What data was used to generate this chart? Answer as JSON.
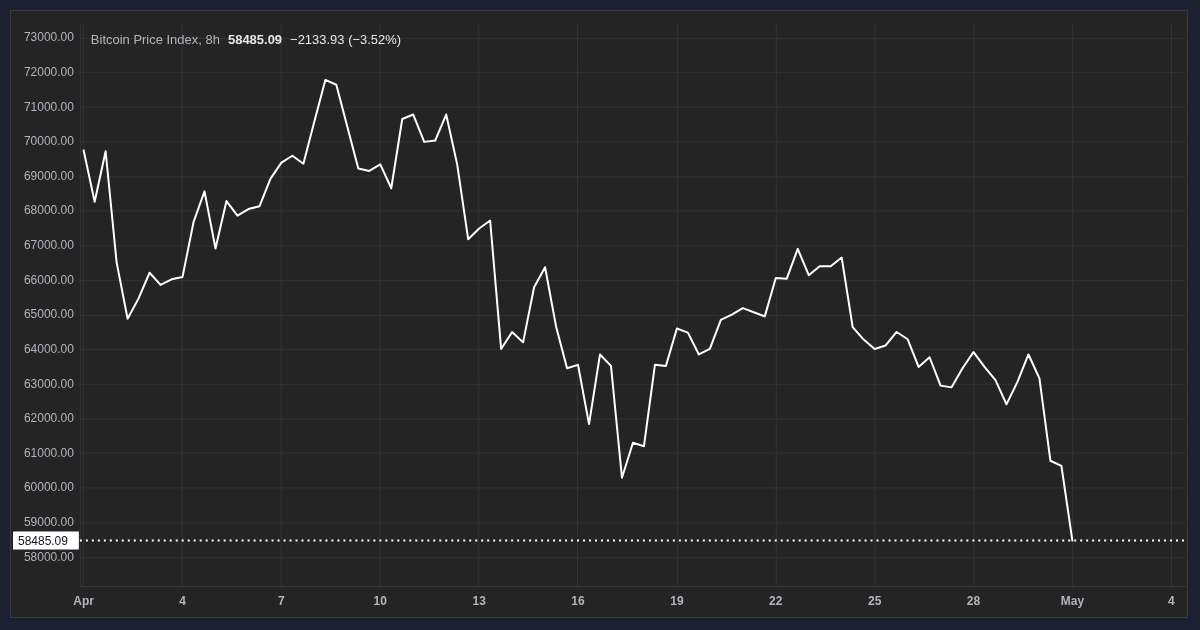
{
  "chart_data": {
    "type": "line",
    "title": "Bitcoin Price Index, 8h",
    "annotations": [
      "58485.09",
      "−2133.93 (−3.52%)"
    ],
    "x": [
      "--04-01T00:00",
      "--04-01T08:00",
      "--04-01T16:00",
      "--04-02T00:00",
      "--04-02T08:00",
      "--04-02T16:00",
      "--04-03T00:00",
      "--04-03T08:00",
      "--04-03T16:00",
      "--04-04T00:00",
      "--04-04T08:00",
      "--04-04T16:00",
      "--04-05T00:00",
      "--04-05T08:00",
      "--04-05T16:00",
      "--04-06T00:00",
      "--04-06T08:00",
      "--04-06T16:00",
      "--04-07T00:00",
      "--04-07T08:00",
      "--04-07T16:00",
      "--04-08T00:00",
      "--04-08T08:00",
      "--04-08T16:00",
      "--04-09T00:00",
      "--04-09T08:00",
      "--04-09T16:00",
      "--04-10T00:00",
      "--04-10T08:00",
      "--04-10T16:00",
      "--04-11T00:00",
      "--04-11T08:00",
      "--04-11T16:00",
      "--04-12T00:00",
      "--04-12T08:00",
      "--04-12T16:00",
      "--04-13T00:00",
      "--04-13T08:00",
      "--04-13T16:00",
      "--04-14T00:00",
      "--04-14T08:00",
      "--04-14T16:00",
      "--04-15T00:00",
      "--04-15T08:00",
      "--04-15T16:00",
      "--04-16T00:00",
      "--04-16T08:00",
      "--04-16T16:00",
      "--04-17T00:00",
      "--04-17T08:00",
      "--04-17T16:00",
      "--04-18T00:00",
      "--04-18T08:00",
      "--04-18T16:00",
      "--04-19T00:00",
      "--04-19T08:00",
      "--04-19T16:00",
      "--04-20T00:00",
      "--04-20T08:00",
      "--04-20T16:00",
      "--04-21T00:00",
      "--04-21T08:00",
      "--04-21T16:00",
      "--04-22T00:00",
      "--04-22T08:00",
      "--04-22T16:00",
      "--04-23T00:00",
      "--04-23T08:00",
      "--04-23T16:00",
      "--04-24T00:00",
      "--04-24T08:00",
      "--04-24T16:00",
      "--04-25T00:00",
      "--04-25T08:00",
      "--04-25T16:00",
      "--04-26T00:00",
      "--04-26T08:00",
      "--04-26T16:00",
      "--04-27T00:00",
      "--04-27T08:00",
      "--04-27T16:00",
      "--04-28T00:00",
      "--04-28T08:00",
      "--04-28T16:00",
      "--04-29T00:00",
      "--04-29T08:00",
      "--04-29T16:00",
      "--04-30T00:00",
      "--04-30T08:00",
      "--04-30T16:00",
      "--05-01T00:00"
    ],
    "series": [
      {
        "color": "#ffffff",
        "values": [
          69750,
          68270,
          69730,
          66520,
          64890,
          65480,
          66220,
          65870,
          66030,
          66100,
          67680,
          68570,
          66920,
          68290,
          67870,
          68060,
          68140,
          68930,
          69400,
          69600,
          69370,
          70590,
          71790,
          71650,
          70440,
          69230,
          69160,
          69350,
          68660,
          70660,
          70790,
          70000,
          70040,
          70790,
          69350,
          67190,
          67500,
          67730,
          64020,
          64510,
          64210,
          65800,
          66380,
          64670,
          63460,
          63560,
          61850,
          63860,
          63530,
          60300,
          61310,
          61210,
          63560,
          63530,
          64610,
          64490,
          63860,
          64020,
          64860,
          65010,
          65200,
          65080,
          64960,
          66070,
          66050,
          66910,
          66150,
          66410,
          66410,
          66660,
          64650,
          64290,
          64020,
          64120,
          64510,
          64300,
          63500,
          63780,
          62960,
          62910,
          63460,
          63930,
          63500,
          63120,
          62420,
          63070,
          63860,
          63170,
          60790,
          60640,
          58485.09
        ]
      }
    ],
    "xlim": [
      "--03-31T21:15",
      "--05-04T10:00"
    ],
    "xticks": [
      {
        "value": "--04-01",
        "label": "Apr"
      },
      {
        "value": "--04-04",
        "label": "4"
      },
      {
        "value": "--04-07",
        "label": "7"
      },
      {
        "value": "--04-10",
        "label": "10"
      },
      {
        "value": "--04-13",
        "label": "13"
      },
      {
        "value": "--04-16",
        "label": "16"
      },
      {
        "value": "--04-19",
        "label": "19"
      },
      {
        "value": "--04-22",
        "label": "22"
      },
      {
        "value": "--04-25",
        "label": "25"
      },
      {
        "value": "--04-28",
        "label": "28"
      },
      {
        "value": "--05-01",
        "label": "May"
      },
      {
        "value": "--05-04",
        "label": "4"
      }
    ],
    "ylim": [
      57170,
      73400
    ],
    "yticks": [
      {
        "value": 58000,
        "label": "58000.00"
      },
      {
        "value": 59000,
        "label": "59000.00"
      },
      {
        "value": 60000,
        "label": "60000.00"
      },
      {
        "value": 61000,
        "label": "61000.00"
      },
      {
        "value": 62000,
        "label": "62000.00"
      },
      {
        "value": 63000,
        "label": "63000.00"
      },
      {
        "value": 64000,
        "label": "64000.00"
      },
      {
        "value": 65000,
        "label": "65000.00"
      },
      {
        "value": 66000,
        "label": "66000.00"
      },
      {
        "value": 67000,
        "label": "67000.00"
      },
      {
        "value": 68000,
        "label": "68000.00"
      },
      {
        "value": 69000,
        "label": "69000.00"
      },
      {
        "value": 70000,
        "label": "70000.00"
      },
      {
        "value": 71000,
        "label": "71000.00"
      },
      {
        "value": 72000,
        "label": "72000.00"
      },
      {
        "value": 73000,
        "label": "73000.00"
      }
    ],
    "grid": true,
    "marker": "none",
    "ref_lines": [
      {
        "axis": "y",
        "value": 58485.09,
        "label": "58485.09",
        "color": "#ffffff",
        "line_style": "dotted"
      }
    ]
  }
}
